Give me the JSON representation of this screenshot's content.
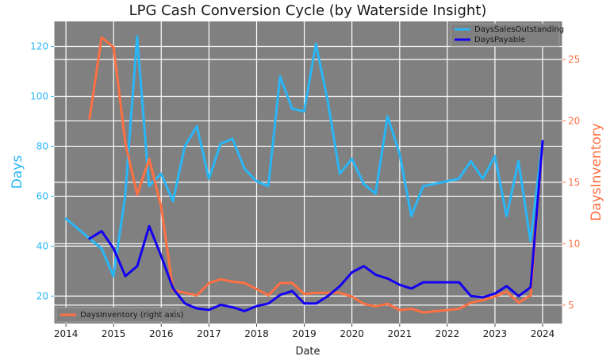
{
  "chart_data": {
    "type": "line",
    "title": "LPG Cash Conversion Cycle (by Waterside Insight)",
    "xlabel": "Date",
    "ylabel_left": "Days",
    "ylabel_right": "DaysInventory",
    "x_ticks": [
      "2014",
      "2015",
      "2016",
      "2017",
      "2018",
      "2019",
      "2020",
      "2021",
      "2022",
      "2023",
      "2024"
    ],
    "y_left_ticks": [
      20,
      40,
      60,
      80,
      100,
      120
    ],
    "y_right_ticks": [
      5,
      10,
      15,
      20,
      25
    ],
    "xlim": [
      "2013-10-01",
      "2024-06-01"
    ],
    "ylim_left": [
      9,
      130
    ],
    "ylim_right": [
      3.5,
      28.1
    ],
    "grid": true,
    "colors": {
      "plot_bg": "#808080",
      "grid": "#ffffff",
      "left_axis": "#29b6f6",
      "right_axis": "#ff7043"
    },
    "legend_upper": {
      "position": "upper right",
      "entries": [
        "DaysSalesOutstanding",
        "DaysPayable"
      ]
    },
    "legend_lower": {
      "position": "lower left",
      "entries": [
        "DaysInventory (right axis)"
      ]
    },
    "series": [
      {
        "name": "DaysSalesOutstanding",
        "axis": "left",
        "color": "#29b6f6",
        "x": [
          "2014-01-01",
          "2014-10-01",
          "2014-12-31",
          "2015-03-31",
          "2015-06-30",
          "2015-09-30",
          "2015-12-31",
          "2016-03-31",
          "2016-06-30",
          "2016-09-30",
          "2016-12-31",
          "2017-03-31",
          "2017-06-30",
          "2017-09-30",
          "2017-12-31",
          "2018-03-31",
          "2018-06-30",
          "2018-09-30",
          "2018-12-31",
          "2019-03-31",
          "2019-06-30",
          "2019-09-30",
          "2019-12-31",
          "2020-03-31",
          "2020-06-30",
          "2020-09-30",
          "2020-12-31",
          "2021-03-31",
          "2021-06-30",
          "2021-09-30",
          "2021-12-31",
          "2022-03-31",
          "2022-06-30",
          "2022-09-30",
          "2022-12-31",
          "2023-03-31",
          "2023-06-30",
          "2023-09-30",
          "2023-12-31"
        ],
        "values": [
          51,
          39,
          28,
          60,
          124,
          64,
          69,
          58,
          80,
          88,
          67,
          81,
          83,
          71,
          66,
          64,
          108,
          95,
          94,
          121,
          98,
          69,
          75,
          65,
          61,
          92,
          77,
          52,
          64,
          65,
          66,
          67,
          74,
          67,
          76,
          52,
          74,
          42,
          82
        ]
      },
      {
        "name": "DaysPayable",
        "axis": "left",
        "color": "#1400f0",
        "x": [
          "2014-07-01",
          "2014-10-01",
          "2015-01-01",
          "2015-04-01",
          "2015-07-01",
          "2015-10-01",
          "2016-01-01",
          "2016-04-01",
          "2016-07-01",
          "2016-10-01",
          "2017-01-01",
          "2017-04-01",
          "2017-07-01",
          "2017-10-01",
          "2018-01-01",
          "2018-04-01",
          "2018-07-01",
          "2018-10-01",
          "2019-01-01",
          "2019-04-01",
          "2019-07-01",
          "2019-10-01",
          "2020-01-01",
          "2020-04-01",
          "2020-07-01",
          "2020-10-01",
          "2021-01-01",
          "2021-04-01",
          "2021-07-01",
          "2021-10-01",
          "2022-01-01",
          "2022-04-01",
          "2022-07-01",
          "2022-10-01",
          "2023-01-01",
          "2023-04-01",
          "2023-07-01",
          "2023-10-01",
          "2024-01-01"
        ],
        "values": [
          43,
          46,
          39,
          28,
          32,
          48,
          36,
          23,
          17,
          15,
          14.5,
          16.5,
          15.5,
          14,
          16,
          17,
          20.5,
          22,
          17,
          17,
          20,
          24,
          29.5,
          32,
          28.5,
          27,
          24.5,
          23,
          25.5,
          25.5,
          25.5,
          25.5,
          20,
          19.5,
          21,
          24,
          20,
          23.5,
          82
        ]
      },
      {
        "name": "DaysInventory (right axis)",
        "axis": "right",
        "color": "#ff7043",
        "x": [
          "2014-07-01",
          "2014-10-01",
          "2015-01-01",
          "2015-04-01",
          "2015-07-01",
          "2015-10-01",
          "2016-01-01",
          "2016-04-01",
          "2016-07-01",
          "2016-10-01",
          "2017-01-01",
          "2017-04-01",
          "2017-07-01",
          "2017-10-01",
          "2018-01-01",
          "2018-04-01",
          "2018-07-01",
          "2018-10-01",
          "2019-01-01",
          "2019-04-01",
          "2019-07-01",
          "2019-10-01",
          "2020-01-01",
          "2020-04-01",
          "2020-07-01",
          "2020-10-01",
          "2021-01-01",
          "2021-04-01",
          "2021-07-01",
          "2021-10-01",
          "2022-01-01",
          "2022-04-01",
          "2022-07-01",
          "2022-10-01",
          "2023-01-01",
          "2023-04-01",
          "2023-07-01",
          "2023-10-01",
          "2024-01-01"
        ],
        "values": [
          20.2,
          26.8,
          26,
          18.2,
          14,
          16.9,
          13,
          6.2,
          6,
          5.8,
          6.8,
          7.1,
          6.9,
          6.8,
          6.3,
          5.8,
          6.8,
          6.8,
          5.9,
          6,
          6,
          6,
          5.7,
          5.1,
          4.9,
          5.1,
          4.6,
          4.7,
          4.4,
          4.5,
          4.6,
          4.7,
          5.2,
          5.4,
          5.7,
          6.1,
          5.2,
          5.8,
          18.3
        ]
      }
    ]
  }
}
